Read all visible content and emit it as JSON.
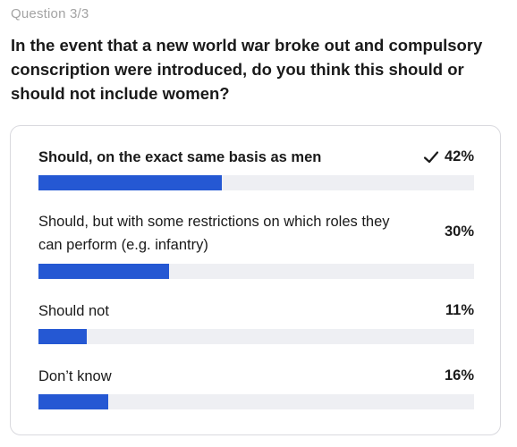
{
  "question": {
    "number": "Question 3/3",
    "text": "In the event that a new world war broke out and compulsory conscription were introduced, do you think this should or should not include women?"
  },
  "options": [
    {
      "label": "Should, on the exact same basis as men",
      "percent": "42%",
      "value": 42,
      "selected": true
    },
    {
      "label": "Should, but with some restrictions on which roles they can perform (e.g. infantry)",
      "percent": "30%",
      "value": 30,
      "selected": false
    },
    {
      "label": "Should not",
      "percent": "11%",
      "value": 11,
      "selected": false
    },
    {
      "label": "Don’t know",
      "percent": "16%",
      "value": 16,
      "selected": false
    }
  ],
  "colors": {
    "bar_fill": "#2558d3",
    "bar_track": "#eeeff3"
  },
  "icons": {
    "selected": "checkmark-icon"
  }
}
